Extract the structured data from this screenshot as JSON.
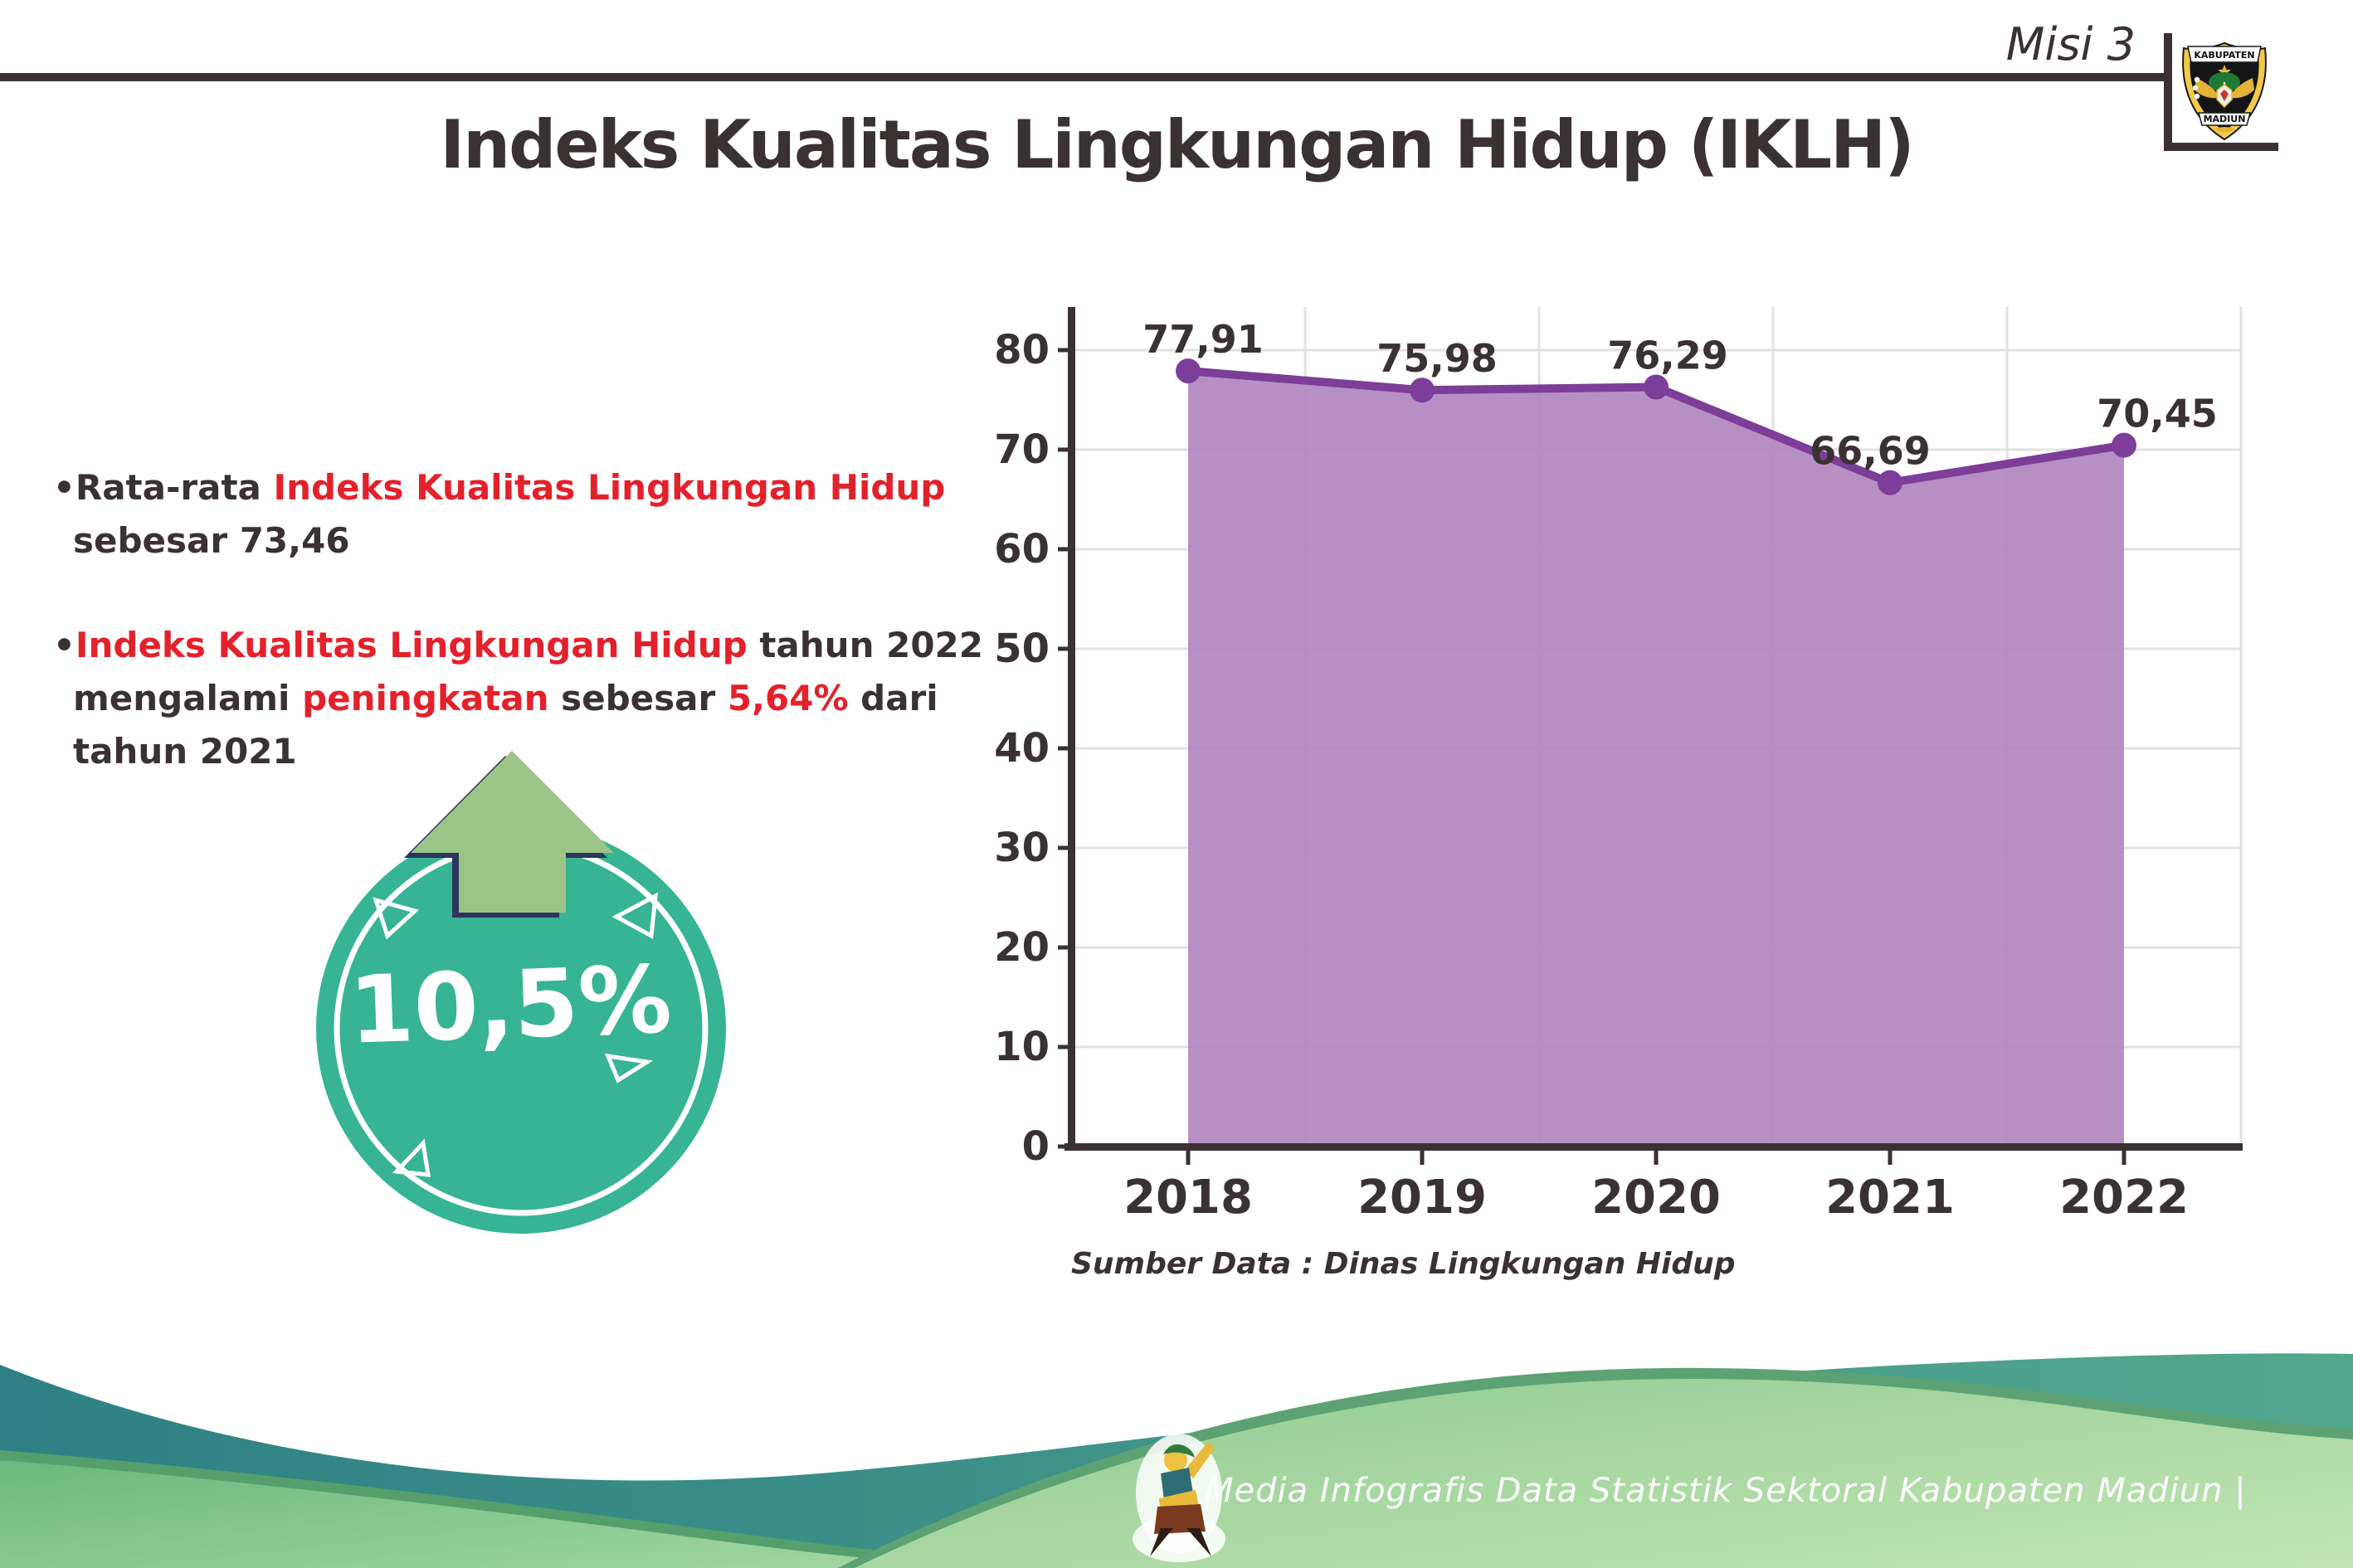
{
  "header": {
    "misi": "Misi 3",
    "title": "Indeks Kualitas Lingkungan Hidup (IKLH)",
    "logo": {
      "top_banner": "KABUPATEN",
      "bottom_banner": "MADIUN"
    }
  },
  "insights": {
    "b1_pre": "Rata-rata ",
    "b1_highlight": "Indeks Kualitas Lingkungan Hidup",
    "b1_line2": "sebesar 73,46",
    "b2_highlight1": "Indeks Kualitas Lingkungan Hidup",
    "b2_t1": " tahun 2022",
    "b2_t2": "mengalami ",
    "b2_highlight2": "peningkatan",
    "b2_t3": " sebesar ",
    "b2_highlight3": "5,64%",
    "b2_t4": " dari",
    "b2_line3": "tahun 2021"
  },
  "badge": {
    "value": "10,5%"
  },
  "chart_data": {
    "type": "area",
    "x": [
      2018,
      2019,
      2020,
      2021,
      2022
    ],
    "series": [
      {
        "name": "IKLH",
        "values": [
          77.91,
          75.98,
          76.29,
          66.69,
          70.45
        ]
      }
    ],
    "point_labels": [
      "77,91",
      "75,98",
      "76,29",
      "66,69",
      "70,45"
    ],
    "title": "Indeks Kualitas Lingkungan Hidup (IKLH)",
    "xlabel": "",
    "ylabel": "",
    "ylim": [
      0,
      80
    ],
    "ytick_step": 10,
    "grid": true,
    "legend": "none",
    "source": "Sumber Data : Dinas Lingkungan Hidup"
  },
  "footer": {
    "credit": "Media Infografis Data Statistik Sektoral Kabupaten Madiun |"
  },
  "colors": {
    "ink": "#3a3132",
    "red": "#e4212b",
    "line_purple": "#7c3e98",
    "fill_purple": "#b286c0",
    "gridline": "#e2e2e2",
    "badge_teal": "#36b494",
    "arrow_green": "#9dc487",
    "arrow_shadow_navy": "#2c3460",
    "footer_teal_dark": "#2e8084",
    "footer_teal_light": "#52a88d",
    "footer_green_light": "#a6d8a3",
    "footer_rim_green": "#5da273"
  }
}
